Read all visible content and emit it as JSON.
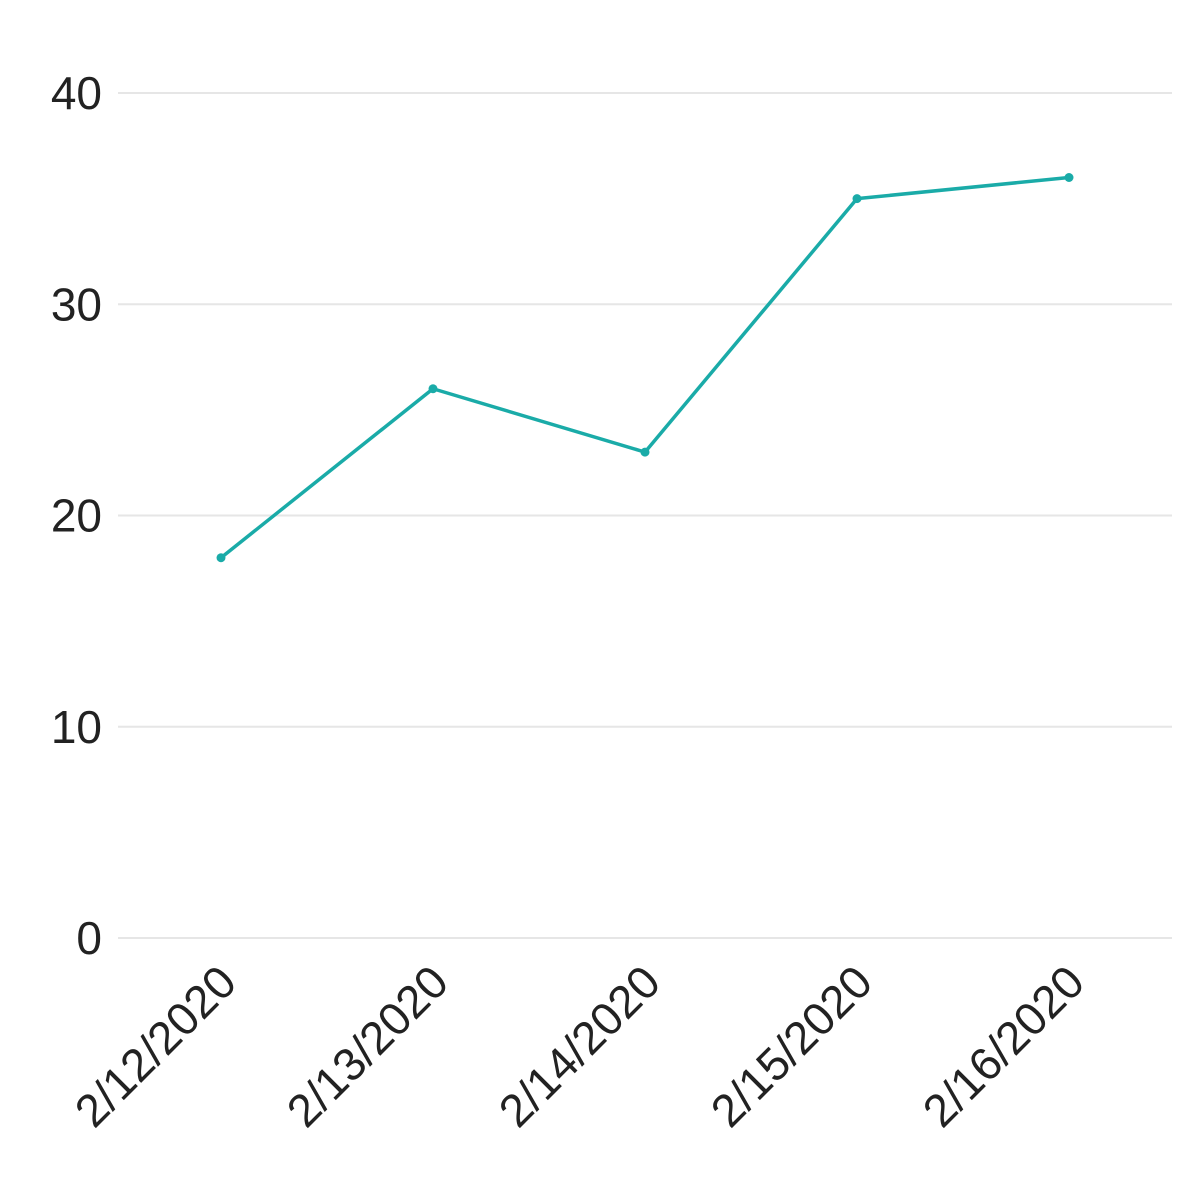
{
  "chart_data": {
    "type": "line",
    "categories": [
      "2/12/2020",
      "2/13/2020",
      "2/14/2020",
      "2/15/2020",
      "2/16/2020"
    ],
    "series": [
      {
        "values": [
          18,
          26,
          23,
          35,
          36
        ]
      }
    ],
    "title": "",
    "xlabel": "",
    "ylabel": "",
    "ylim": [
      0,
      40
    ],
    "yticks": [
      0,
      10,
      20,
      30,
      40
    ],
    "grid": true,
    "legend": "none",
    "colors": {
      "line": "#1aaba8",
      "grid": "#e6e6e6",
      "text": "#222222"
    }
  }
}
